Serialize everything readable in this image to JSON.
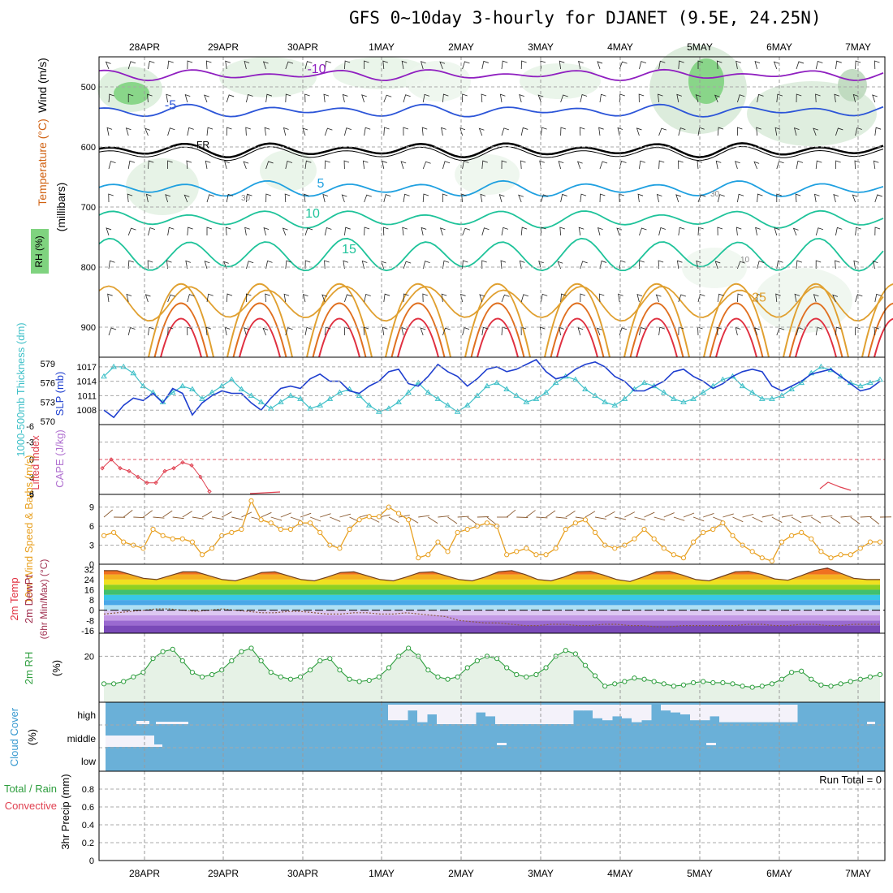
{
  "title": "GFS 0~10day 3-hourly for DJANET (9.5E, 24.25N)",
  "colors": {
    "rh_green": "#7fd37f",
    "temp_purple": "#8f1fc0",
    "temp_blue": "#2c55d8",
    "temp_cyan": "#1fa0e0",
    "temp_teal": "#1fc39a",
    "temp_orange": "#e0a030",
    "temp_red": "#e03040",
    "slp_blue": "#1f3fcf",
    "thickness_cyan": "#3fc0c8",
    "lifted_red": "#e04050",
    "cape_violet": "#b070d0",
    "wind_orange": "#e8a020",
    "rh2m_green": "#2e9e3e",
    "cloud_blue": "#6ab0d8"
  },
  "chart_data": [
    {
      "panel": "upper-air",
      "type": "heatmap",
      "x_labels": [
        "28APR",
        "29APR",
        "30APR",
        "1MAY",
        "2MAY",
        "3MAY",
        "4MAY",
        "5MAY",
        "6MAY",
        "7MAY"
      ],
      "ylabel": "(millibars)",
      "side_labels": [
        "Wind (m/s)",
        "Temperature (°C)",
        "RH (%)"
      ],
      "yticks": [
        500,
        600,
        700,
        800,
        900
      ],
      "ylim": [
        450,
        950
      ],
      "isotherms": [
        {
          "label": "-10",
          "level_mb": 480
        },
        {
          "label": "-5",
          "level_mb": 540
        },
        {
          "label": "FR",
          "level_mb": 605
        },
        {
          "label": "5",
          "level_mb": 670
        },
        {
          "label": "10",
          "level_mb": 720
        },
        {
          "label": "15",
          "level_mb": 780
        },
        {
          "label": "25",
          "level_mb": 860
        }
      ],
      "rh_contour_labels": [
        "30",
        "30",
        "10"
      ]
    },
    {
      "panel": "slp-thickness",
      "type": "line",
      "left_label": "1000-500mb Thickness (dm)",
      "right_label": "SLP (mb)",
      "yticks_thickness": [
        570,
        573,
        576,
        579
      ],
      "yticks_slp": [
        1008,
        1011,
        1014,
        1017
      ],
      "ylim_slp": [
        1005,
        1019
      ],
      "series": [
        {
          "name": "SLP (mb)",
          "values": [
            1008,
            1006.5,
            1009,
            1010.5,
            1010,
            1011.5,
            1009.5,
            1012.5,
            1011.5,
            1007,
            1009.5,
            1011,
            1012,
            1011.5,
            1011.5,
            1009.5,
            1008,
            1010.5,
            1012.5,
            1013,
            1012.5,
            1014.5,
            1015.5,
            1014,
            1014,
            1012,
            1011.5,
            1013,
            1014,
            1016,
            1016.5,
            1013.5,
            1013,
            1015,
            1017.5,
            1016,
            1015,
            1013,
            1014.5,
            1016.5,
            1017,
            1016,
            1016.5,
            1017.5,
            1018.5,
            1016,
            1014.5,
            1015,
            1016.5,
            1017.5,
            1018,
            1017,
            1015,
            1014,
            1012,
            1012,
            1013,
            1014,
            1016,
            1016.5,
            1015,
            1014,
            1012.5,
            1013.5,
            1015,
            1016,
            1016.5,
            1016,
            1013,
            1012,
            1013,
            1014,
            1015.5,
            1016,
            1016.5,
            1015,
            1013.5,
            1012,
            1012.5,
            1014
          ]
        },
        {
          "name": "1000-500mb Thickness (dm)",
          "values": [
            577,
            578.5,
            578.5,
            577.5,
            575.5,
            574.5,
            573,
            574.5,
            575.5,
            575,
            573.5,
            574.5,
            575.5,
            576.5,
            575,
            574,
            573,
            572,
            573,
            574,
            573.5,
            572,
            572.5,
            573.5,
            574.5,
            575,
            574,
            572.5,
            571.5,
            572,
            573,
            574.5,
            576,
            574.5,
            573.5,
            572.5,
            571.5,
            572.5,
            574,
            575.5,
            576,
            575,
            574,
            573,
            573.5,
            574.5,
            576,
            577,
            576.5,
            575,
            574,
            573,
            572.5,
            573.5,
            575,
            576,
            575.5,
            574.5,
            573.5,
            573,
            573.5,
            574.5,
            575.5,
            576.5,
            577,
            575.5,
            574.5,
            573.5,
            573.5,
            574,
            575,
            576,
            577.5,
            578.5,
            578,
            577,
            576,
            575.5,
            576,
            576.5
          ]
        }
      ]
    },
    {
      "panel": "lifted-cape",
      "type": "line",
      "left_label": "CAPE (J/kg) Lifted Index",
      "yticks": [
        -3,
        0,
        3,
        6
      ],
      "ylim": [
        -6,
        6
      ],
      "series": [
        {
          "name": "Lifted Index",
          "values": [
            1.5,
            0,
            1.5,
            2,
            3,
            4,
            4,
            2,
            1.5,
            0.5,
            1,
            3,
            5.5
          ]
        }
      ]
    },
    {
      "panel": "wind-10m",
      "type": "line",
      "left_label": "10m Wind Speed & Barbs (m/s)",
      "yticks": [
        0,
        3,
        6,
        9
      ],
      "ylim": [
        0,
        11
      ],
      "series": [
        {
          "name": "10m Wind Speed",
          "values": [
            4.5,
            5,
            3.5,
            3,
            2.5,
            5.5,
            4.5,
            4,
            4,
            3.5,
            1.5,
            2.5,
            4.5,
            5,
            5.5,
            10,
            7,
            6.5,
            5.5,
            5.5,
            6.5,
            6.5,
            5,
            3,
            2.5,
            5.5,
            7,
            7.5,
            7.5,
            9,
            8,
            7,
            1,
            1.5,
            3.5,
            2,
            5,
            5.5,
            6,
            6.5,
            6,
            1.5,
            2,
            2.5,
            1.5,
            1.5,
            2.5,
            5.5,
            6.5,
            7,
            5,
            3,
            2.5,
            3,
            4,
            5.5,
            4,
            2.5,
            1.5,
            1,
            3.5,
            5,
            5.5,
            6.5,
            4.5,
            3,
            2,
            1,
            0.5,
            3.5,
            4.5,
            5,
            4,
            2,
            1,
            1.5,
            1.5,
            2.5,
            3.5,
            3.5
          ]
        }
      ]
    },
    {
      "panel": "temp-2m",
      "type": "area",
      "left_label": "2m Temp 2m DewPt (6hr Min/Max) (°C)",
      "yticks": [
        -16,
        -8,
        0,
        8,
        16,
        24,
        32
      ],
      "ylim": [
        -18,
        36
      ],
      "series": [
        {
          "name": "2m Temp",
          "values": [
            31,
            31,
            28,
            25,
            24,
            27,
            30,
            30,
            27,
            24,
            23,
            26,
            29.5,
            30,
            27,
            24,
            23,
            26,
            29.5,
            30,
            27,
            24,
            23,
            26,
            29.5,
            30,
            27,
            24,
            23,
            26,
            30,
            31,
            28,
            24,
            23,
            26,
            30,
            30.5,
            27.5,
            24,
            22.5,
            26,
            30,
            30.5,
            27.5,
            24,
            23,
            26.5,
            30,
            30.5,
            28,
            24.5,
            23.5,
            27,
            31,
            33,
            29,
            25,
            24,
            24
          ]
        },
        {
          "name": "2m DewPt",
          "values": [
            -3,
            -2,
            -1,
            0,
            1,
            1,
            0,
            -1,
            0,
            1,
            0,
            -1,
            -2,
            -2,
            -1,
            -1,
            -2,
            -3,
            -3,
            -2,
            -2,
            -3,
            -3,
            -2,
            -3,
            -4,
            -5,
            -8,
            -9,
            -10,
            -10,
            -11,
            -12,
            -12,
            -11,
            -11,
            -12,
            -12,
            -11,
            -11,
            -12,
            -12,
            -13,
            -13,
            -12,
            -12,
            -12,
            -12,
            -12,
            -11,
            -11,
            -12,
            -12,
            -11,
            -11,
            -12,
            -12,
            -11,
            -11,
            -11
          ]
        }
      ]
    },
    {
      "panel": "rh-2m",
      "type": "line",
      "left_label": "2m RH (%)",
      "yticks": [
        20
      ],
      "ylim": [
        0,
        30
      ],
      "series": [
        {
          "name": "2m RH",
          "values": [
            8,
            8,
            9,
            11,
            13,
            19,
            22,
            23,
            18,
            13,
            11,
            12,
            14,
            18,
            22,
            23.5,
            18,
            13,
            11,
            10,
            11,
            14,
            18,
            19,
            14,
            10,
            9,
            9.5,
            11,
            15,
            20,
            23.5,
            20,
            14,
            11,
            10,
            11,
            15,
            18,
            20,
            19,
            15,
            12,
            11,
            12,
            15,
            20,
            22.5,
            21,
            16,
            11.5,
            7,
            8,
            9,
            10.5,
            10,
            9,
            8,
            7,
            7.5,
            8.5,
            9,
            8.5,
            8.5,
            8,
            7,
            6.5,
            7,
            8,
            10,
            13,
            13.5,
            10,
            7.5,
            7,
            8,
            9,
            10,
            11,
            12
          ]
        }
      ]
    },
    {
      "panel": "cloud-cover",
      "type": "bar",
      "left_label": "Cloud Cover (%)",
      "rows": [
        "high",
        "middle",
        "low"
      ],
      "run_total_label": "Run Total = 0",
      "high_clear_fraction": [
        0,
        0,
        0,
        0,
        0,
        0,
        0,
        0,
        0,
        0,
        0,
        0,
        0,
        0,
        0,
        0,
        0,
        0,
        0,
        0,
        0,
        0,
        0,
        0,
        0,
        0,
        0,
        0,
        0,
        0.8,
        0.8,
        0.3,
        0.9,
        0.5,
        1,
        1,
        1,
        1,
        0.4,
        0.6,
        1,
        1,
        1,
        1,
        1,
        1,
        1,
        1,
        0.3,
        0.3,
        0.7,
        0.8,
        0.6,
        0.7,
        0.9,
        0.8,
        0,
        0.3,
        0.4,
        0.5,
        0.8,
        0.8,
        0.6,
        0.9,
        0.9,
        0.9,
        0.9,
        0.9,
        0.9,
        0.9,
        0.9,
        0,
        0,
        0,
        0,
        0,
        0,
        0,
        0,
        0
      ]
    },
    {
      "panel": "precip",
      "type": "bar",
      "left_label": "3hr Precip (mm) Total / Rain Convective",
      "yticks": [
        0,
        0.2,
        0.4,
        0.6,
        0.8
      ],
      "ylim": [
        0,
        1
      ],
      "run_total": "Run Total = 0",
      "series": [
        {
          "name": "Total / Rain",
          "values": []
        },
        {
          "name": "Convective",
          "values": []
        }
      ]
    }
  ],
  "day_labels": [
    "28APR",
    "29APR",
    "30APR",
    "1MAY",
    "2MAY",
    "3MAY",
    "4MAY",
    "5MAY",
    "6MAY",
    "7MAY"
  ],
  "side_labels": {
    "wind": "Wind (m/s)",
    "temperature": "Temperature (°C)",
    "rh": "RH (%)",
    "millibars": "(millibars)",
    "thickness": "1000-500mb Thickness (dm)",
    "slp": "SLP (mb)",
    "lifted": "Lifted Index",
    "cape": "CAPE (J/kg)",
    "wind10": "10m Wind Speed & Barbs (m/s)",
    "temp2m": "2m Temp",
    "dewpt2m": "2m DewPt",
    "minmax": "(6hr Min/Max) (°C)",
    "rh2m": "2m RH",
    "rh2m_unit": "(%)",
    "cloud": "Cloud Cover",
    "cloud_unit": "(%)",
    "precip": "3hr Precip (mm)",
    "total_rain": "Total / Rain",
    "convective": "Convective"
  }
}
